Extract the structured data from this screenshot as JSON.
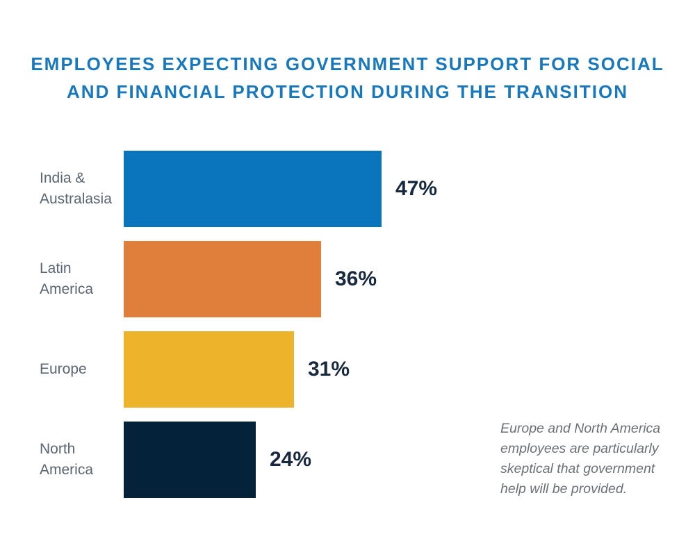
{
  "title": {
    "line1": "EMPLOYEES EXPECTING GOVERNMENT SUPPORT FOR SOCIAL",
    "line2": "AND FINANCIAL PROTECTION DURING THE TRANSITION",
    "color": "#1878BE"
  },
  "chart_data": {
    "type": "bar",
    "orientation": "horizontal",
    "title": "Employees expecting government support for social and financial protection during the transition",
    "categories": [
      "India & Australasia",
      "Latin America",
      "Europe",
      "North America"
    ],
    "values": [
      47,
      36,
      31,
      24
    ],
    "value_labels": [
      "47%",
      "36%",
      "31%",
      "24%"
    ],
    "bar_colors": [
      "#0A74BC",
      "#E07E3B",
      "#EDB32A",
      "#04233A"
    ],
    "xlim": [
      0,
      50
    ],
    "grid": false,
    "legend": "none",
    "value_label_position": "right-of-bar"
  },
  "annotation": {
    "text": "Europe and North America\nemployees are particularly\nskeptical that government\nhelp will be provided.",
    "color": "#6C7076"
  },
  "colors": {
    "category_label": "#5B6573",
    "value_label": "#16293F",
    "background": "#FFFFFF"
  }
}
